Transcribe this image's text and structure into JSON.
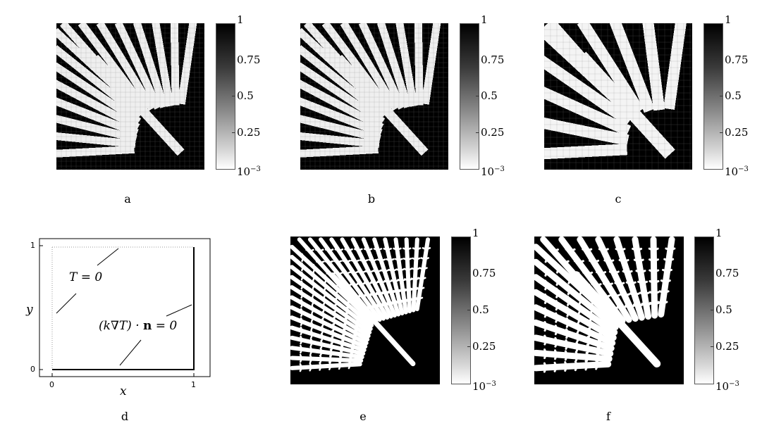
{
  "colorbar_labels": [
    "1",
    "0.75",
    "0.5",
    "0.25",
    "10"
  ],
  "colorbar_exponent": "−3",
  "captions": {
    "a": "a",
    "b": "b",
    "c": "c",
    "d": "d",
    "e": "e",
    "f": "f"
  },
  "diagram": {
    "x_label": "x",
    "y_label": "y",
    "x_ticks": [
      "0",
      "1"
    ],
    "y_ticks": [
      "0",
      "1"
    ],
    "dirichlet_label": "T = 0",
    "neumann_label": "(k∇T) · n = 0"
  },
  "colors": {
    "solid": "#000000",
    "void": "#ffffff",
    "frame": "#000000"
  }
}
